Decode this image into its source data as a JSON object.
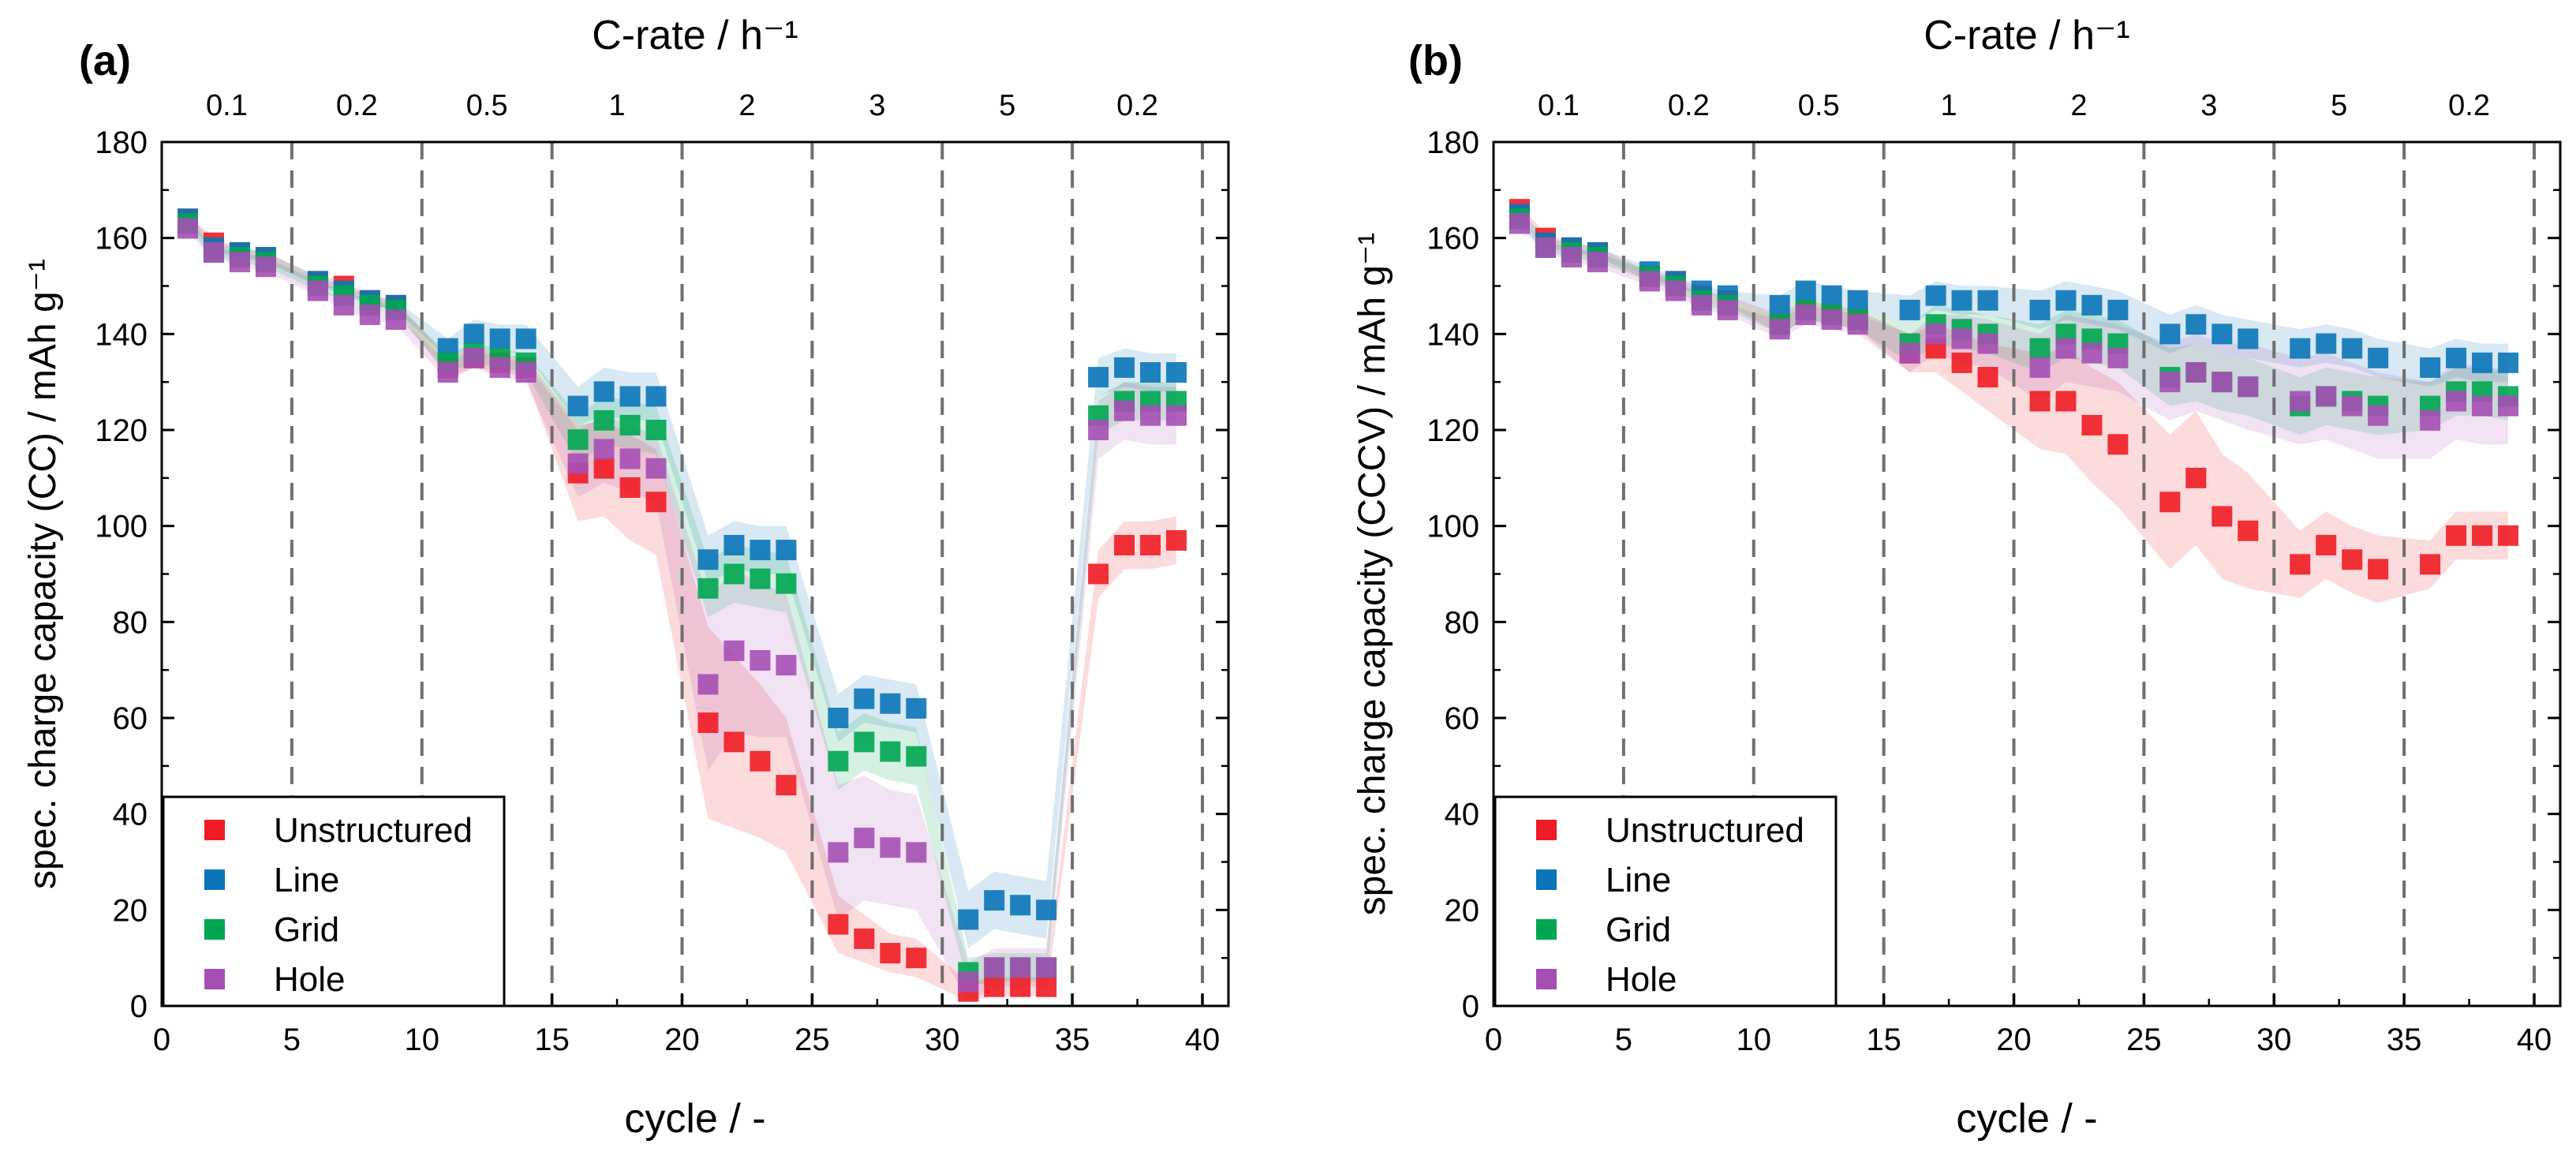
{
  "chart_data": [
    {
      "panel_label": "(a)",
      "type": "scatter",
      "top_axis_title": "C-rate / h⁻¹",
      "crate_labels": [
        "0.1",
        "0.2",
        "0.5",
        "1",
        "2",
        "3",
        "5",
        "0.2"
      ],
      "crate_boundaries": [
        5,
        10,
        15,
        20,
        25,
        30,
        35,
        40
      ],
      "xlabel": "cycle / -",
      "ylabel": "spec. charge capacity (CC) / mAh g⁻¹",
      "xlim": [
        0,
        41
      ],
      "ylim": [
        0,
        180
      ],
      "xticks": [
        0,
        5,
        10,
        15,
        20,
        25,
        30,
        35,
        40
      ],
      "yticks": [
        0,
        20,
        40,
        60,
        80,
        100,
        120,
        140,
        160,
        180
      ],
      "legend_position": "bottom-left",
      "series": [
        {
          "name": "Unstructured",
          "color": "#ee1c25",
          "x": [
            1,
            2,
            3,
            4,
            6,
            7,
            8,
            9,
            11,
            12,
            13,
            14,
            16,
            17,
            18,
            19,
            21,
            22,
            23,
            24,
            26,
            27,
            28,
            29,
            31,
            32,
            33,
            34,
            36,
            37,
            38,
            39
          ],
          "y": [
            164,
            159,
            157,
            156,
            151,
            150,
            147,
            146,
            133,
            135,
            134,
            133,
            111,
            112,
            108,
            105,
            59,
            55,
            51,
            46,
            17,
            14,
            11,
            10,
            3,
            4,
            4,
            4,
            90,
            96,
            96,
            97
          ],
          "spread": [
            1,
            1,
            1,
            1,
            1,
            1,
            1,
            1,
            2,
            2,
            2,
            2,
            10,
            10,
            11,
            11,
            20,
            18,
            16,
            14,
            6,
            5,
            4,
            4,
            2,
            2,
            2,
            2,
            5,
            5,
            5,
            5
          ]
        },
        {
          "name": "Line",
          "color": "#0a75b8",
          "x": [
            1,
            2,
            3,
            4,
            6,
            7,
            8,
            9,
            11,
            12,
            13,
            14,
            16,
            17,
            18,
            19,
            21,
            22,
            23,
            24,
            26,
            27,
            28,
            29,
            31,
            32,
            33,
            34,
            36,
            37,
            38,
            39
          ],
          "y": [
            164,
            158,
            157,
            156,
            151,
            149,
            147,
            146,
            137,
            140,
            139,
            139,
            125,
            128,
            127,
            127,
            93,
            96,
            95,
            95,
            60,
            64,
            63,
            62,
            18,
            22,
            21,
            20,
            131,
            133,
            132,
            132
          ],
          "spread": [
            1,
            1,
            1,
            1,
            1,
            1,
            1,
            1,
            2,
            3,
            3,
            3,
            4,
            5,
            5,
            5,
            5,
            5,
            5,
            5,
            5,
            5,
            5,
            5,
            6,
            6,
            6,
            6,
            4,
            4,
            4,
            4
          ]
        },
        {
          "name": "Grid",
          "color": "#00a651",
          "x": [
            1,
            2,
            3,
            4,
            6,
            7,
            8,
            9,
            11,
            12,
            13,
            14,
            16,
            17,
            18,
            19,
            21,
            22,
            23,
            24,
            26,
            27,
            28,
            29,
            31,
            32,
            33,
            34,
            36,
            37,
            38,
            39
          ],
          "y": [
            163,
            157,
            156,
            155,
            150,
            148,
            146,
            145,
            134,
            136,
            135,
            134,
            118,
            122,
            121,
            120,
            87,
            90,
            89,
            88,
            51,
            55,
            53,
            52,
            7,
            8,
            8,
            8,
            123,
            126,
            126,
            126
          ],
          "spread": [
            1,
            1,
            1,
            1,
            1,
            1,
            1,
            1,
            2,
            2,
            2,
            2,
            5,
            5,
            5,
            5,
            6,
            6,
            6,
            6,
            6,
            6,
            6,
            6,
            3,
            3,
            3,
            3,
            4,
            4,
            4,
            4
          ]
        },
        {
          "name": "Hole",
          "color": "#a54fb4",
          "x": [
            1,
            2,
            3,
            4,
            6,
            7,
            8,
            9,
            11,
            12,
            13,
            14,
            16,
            17,
            18,
            19,
            21,
            22,
            23,
            24,
            26,
            27,
            28,
            29,
            31,
            32,
            33,
            34,
            36,
            37,
            38,
            39
          ],
          "y": [
            162,
            157,
            155,
            154,
            149,
            146,
            144,
            143,
            132,
            135,
            133,
            132,
            113,
            116,
            114,
            112,
            67,
            74,
            72,
            71,
            32,
            35,
            33,
            32,
            5,
            8,
            8,
            8,
            120,
            124,
            123,
            123
          ],
          "spread": [
            1,
            1,
            1,
            1,
            1,
            1,
            1,
            1,
            2,
            2,
            2,
            2,
            7,
            7,
            7,
            7,
            18,
            17,
            16,
            15,
            14,
            13,
            12,
            12,
            4,
            4,
            4,
            4,
            6,
            6,
            6,
            6
          ]
        }
      ]
    },
    {
      "panel_label": "(b)",
      "type": "scatter",
      "top_axis_title": "C-rate / h⁻¹",
      "crate_labels": [
        "0.1",
        "0.2",
        "0.5",
        "1",
        "2",
        "3",
        "5",
        "0.2"
      ],
      "crate_boundaries": [
        5,
        10,
        15,
        20,
        25,
        30,
        35,
        40
      ],
      "xlabel": "cycle / -",
      "ylabel": "spec. charge capacity (CCCV) / mAh g⁻¹",
      "xlim": [
        0,
        41
      ],
      "ylim": [
        0,
        180
      ],
      "xticks": [
        0,
        5,
        10,
        15,
        20,
        25,
        30,
        35,
        40
      ],
      "yticks": [
        0,
        20,
        40,
        60,
        80,
        100,
        120,
        140,
        160,
        180
      ],
      "legend_position": "bottom-left",
      "series": [
        {
          "name": "Unstructured",
          "color": "#ee1c25",
          "x": [
            1,
            2,
            3,
            4,
            6,
            7,
            8,
            9,
            11,
            12,
            13,
            14,
            16,
            17,
            18,
            19,
            21,
            22,
            23,
            24,
            26,
            27,
            28,
            29,
            31,
            32,
            33,
            34,
            36,
            37,
            38,
            39
          ],
          "y": [
            166,
            160,
            158,
            157,
            152,
            151,
            148,
            147,
            142,
            145,
            144,
            143,
            136,
            137,
            134,
            131,
            126,
            126,
            121,
            117,
            105,
            110,
            102,
            99,
            92,
            96,
            93,
            91,
            92,
            98,
            98,
            98
          ],
          "spread": [
            1,
            1,
            1,
            1,
            1,
            1,
            1,
            1,
            2,
            2,
            2,
            2,
            4,
            5,
            6,
            7,
            10,
            11,
            12,
            13,
            14,
            14,
            13,
            12,
            7,
            7,
            7,
            7,
            5,
            5,
            5,
            5
          ]
        },
        {
          "name": "Line",
          "color": "#0a75b8",
          "x": [
            1,
            2,
            3,
            4,
            6,
            7,
            8,
            9,
            11,
            12,
            13,
            14,
            16,
            17,
            18,
            19,
            21,
            22,
            23,
            24,
            26,
            27,
            28,
            29,
            31,
            32,
            33,
            34,
            36,
            37,
            38,
            39
          ],
          "y": [
            165,
            159,
            158,
            157,
            153,
            151,
            149,
            148,
            146,
            149,
            148,
            147,
            145,
            148,
            147,
            147,
            145,
            147,
            146,
            145,
            140,
            142,
            140,
            139,
            137,
            138,
            137,
            135,
            133,
            135,
            134,
            134
          ],
          "spread": [
            1,
            1,
            1,
            1,
            1,
            1,
            1,
            1,
            2,
            2,
            2,
            2,
            3,
            3,
            3,
            3,
            4,
            4,
            4,
            4,
            4,
            4,
            4,
            4,
            4,
            4,
            4,
            4,
            4,
            4,
            4,
            4
          ]
        },
        {
          "name": "Grid",
          "color": "#00a651",
          "x": [
            1,
            2,
            3,
            4,
            6,
            7,
            8,
            9,
            11,
            12,
            13,
            14,
            16,
            17,
            18,
            19,
            21,
            22,
            23,
            24,
            26,
            27,
            28,
            29,
            31,
            32,
            33,
            34,
            36,
            37,
            38,
            39
          ],
          "y": [
            164,
            158,
            157,
            156,
            152,
            150,
            147,
            146,
            142,
            145,
            144,
            143,
            138,
            142,
            141,
            140,
            137,
            140,
            139,
            138,
            131,
            132,
            130,
            129,
            125,
            127,
            126,
            125,
            125,
            128,
            128,
            127
          ],
          "spread": [
            1,
            1,
            1,
            1,
            1,
            1,
            1,
            1,
            2,
            2,
            2,
            2,
            4,
            4,
            4,
            4,
            5,
            5,
            5,
            5,
            6,
            6,
            6,
            6,
            6,
            6,
            6,
            6,
            5,
            5,
            5,
            5
          ]
        },
        {
          "name": "Hole",
          "color": "#a54fb4",
          "x": [
            1,
            2,
            3,
            4,
            6,
            7,
            8,
            9,
            11,
            12,
            13,
            14,
            16,
            17,
            18,
            19,
            21,
            22,
            23,
            24,
            26,
            27,
            28,
            29,
            31,
            32,
            33,
            34,
            36,
            37,
            38,
            39
          ],
          "y": [
            163,
            158,
            156,
            155,
            151,
            149,
            146,
            145,
            141,
            144,
            143,
            142,
            136,
            140,
            139,
            138,
            133,
            137,
            136,
            135,
            130,
            132,
            130,
            129,
            126,
            127,
            125,
            123,
            122,
            126,
            125,
            125
          ],
          "spread": [
            1,
            1,
            1,
            1,
            1,
            1,
            1,
            1,
            2,
            2,
            2,
            2,
            4,
            4,
            5,
            5,
            7,
            7,
            7,
            7,
            8,
            8,
            8,
            9,
            9,
            9,
            9,
            9,
            8,
            8,
            8,
            8
          ]
        }
      ]
    }
  ]
}
